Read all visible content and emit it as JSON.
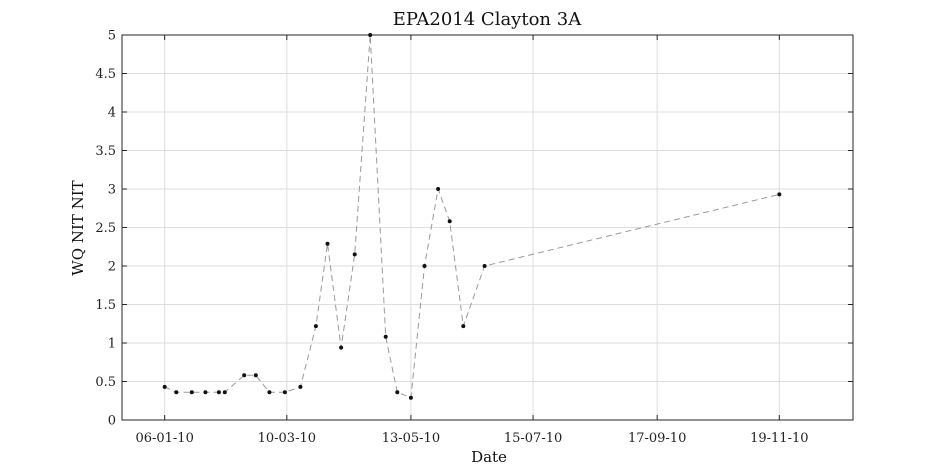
{
  "chart_data": {
    "type": "line",
    "title": "EPA2014 Clayton 3A",
    "xlabel": "Date",
    "ylabel": "WQ NIT NIT",
    "ylim": [
      0,
      5
    ],
    "yticks": [
      0,
      0.5,
      1,
      1.5,
      2,
      2.5,
      3,
      3.5,
      4,
      4.5,
      5
    ],
    "ytick_labels": [
      "0",
      "0.5",
      "1",
      "1.5",
      "2",
      "2.5",
      "3",
      "3.5",
      "4",
      "4.5",
      "5"
    ],
    "xlim": [
      "2009-12-15",
      "2010-12-27"
    ],
    "xticks": [
      "2010-01-06",
      "2010-03-10",
      "2010-05-13",
      "2010-07-15",
      "2010-09-17",
      "2010-11-19"
    ],
    "xtick_labels": [
      "06-01-10",
      "10-03-10",
      "13-05-10",
      "15-07-10",
      "17-09-10",
      "19-11-10"
    ],
    "grid": true,
    "line_color": "#999999",
    "line_style": "dashed",
    "marker_color": "#111111",
    "series": [
      {
        "x": [
          "2010-01-06",
          "2010-01-12",
          "2010-01-20",
          "2010-01-27",
          "2010-02-03",
          "2010-02-06",
          "2010-02-16",
          "2010-02-22",
          "2010-03-01",
          "2010-03-09",
          "2010-03-17",
          "2010-03-25",
          "2010-03-31",
          "2010-04-07",
          "2010-04-14",
          "2010-04-22",
          "2010-04-30",
          "2010-05-06",
          "2010-05-13",
          "2010-05-20",
          "2010-05-27",
          "2010-06-02",
          "2010-06-09",
          "2010-06-20",
          "2010-11-19"
        ],
        "y": [
          0.43,
          0.36,
          0.36,
          0.36,
          0.36,
          0.36,
          0.58,
          0.58,
          0.36,
          0.36,
          0.43,
          1.22,
          2.29,
          0.94,
          2.15,
          5.0,
          1.08,
          0.36,
          0.29,
          2.0,
          3.0,
          2.58,
          1.22,
          2.0,
          2.93
        ]
      }
    ]
  }
}
